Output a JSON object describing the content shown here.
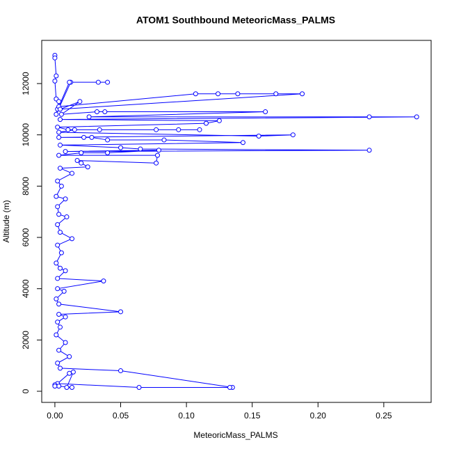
{
  "chart_data": {
    "type": "line",
    "title": "ATOM1 Southbound MeteoricMass_PALMS",
    "x_label": "MeteoricMass_PALMS",
    "y_label": "Altitude (m)",
    "x": [
      0,
      0,
      0.001,
      0,
      0.001,
      0.003,
      0.002,
      0.001,
      0.012,
      0.033,
      0.04,
      0.011,
      0.003,
      0.107,
      0.124,
      0.139,
      0.168,
      0.188,
      0.004,
      0.019,
      0.005,
      0.032,
      0.038,
      0.16,
      0.026,
      0.239,
      0.275,
      0.004,
      0.125,
      0.115,
      0.002,
      0.01,
      0.034,
      0.077,
      0.094,
      0.11,
      0.015,
      0.003,
      0.155,
      0.181,
      0.003,
      0.022,
      0.028,
      0.04,
      0.083,
      0.143,
      0.004,
      0.05,
      0.065,
      0.239,
      0.008,
      0.079,
      0.04,
      0.02,
      0.003,
      0.078,
      0.077,
      0.017,
      0.02,
      0.025,
      0.004,
      0.013,
      0.002,
      0.005,
      0.001,
      0.008,
      0.002,
      0.003,
      0.009,
      0.002,
      0.004,
      0.013,
      0.002,
      0.005,
      0.001,
      0.004,
      0.008,
      0.002,
      0.037,
      0.002,
      0.007,
      0.001,
      0.003,
      0.05,
      0.003,
      0.008,
      0.002,
      0.004,
      0.001,
      0.008,
      0.003,
      0.011,
      0.002,
      0.004,
      0.05,
      0.135,
      0.133,
      0.064,
      0.002,
      0.011,
      0.014,
      0.009,
      0.013,
      0.003,
      0,
      0
    ],
    "series": [
      {
        "color": "#0000ff",
        "values": [
          13100,
          13000,
          12300,
          12100,
          11400,
          11300,
          11000,
          10800,
          12050,
          12050,
          12050,
          12050,
          11100,
          11600,
          11600,
          11600,
          11600,
          11600,
          11000,
          11300,
          10800,
          10900,
          10900,
          10900,
          10700,
          10700,
          10700,
          10600,
          10550,
          10450,
          10300,
          10200,
          10200,
          10200,
          10200,
          10200,
          10200,
          10100,
          9950,
          10000,
          9900,
          9900,
          9900,
          9800,
          9800,
          9700,
          9600,
          9500,
          9450,
          9400,
          9350,
          9400,
          9300,
          9300,
          9200,
          9200,
          8900,
          9000,
          8900,
          8750,
          8700,
          8500,
          8200,
          8000,
          7600,
          7500,
          7200,
          6900,
          6800,
          6500,
          6200,
          5950,
          5700,
          5400,
          5000,
          4800,
          4700,
          4400,
          4300,
          4000,
          3900,
          3600,
          3400,
          3100,
          3000,
          2900,
          2700,
          2500,
          2200,
          1900,
          1600,
          1350,
          1100,
          900,
          800,
          150,
          150,
          150,
          300,
          700,
          750,
          150,
          150,
          200,
          250,
          200
        ]
      }
    ],
    "xlim": [
      -0.01,
      0.286
    ],
    "ylim": [
      -434,
      13684
    ],
    "xticks": [
      {
        "value": 0,
        "label": "0.00"
      },
      {
        "value": 0.05,
        "label": "0.05"
      },
      {
        "value": 0.1,
        "label": "0.10"
      },
      {
        "value": 0.15,
        "label": "0.15"
      },
      {
        "value": 0.2,
        "label": "0.20"
      },
      {
        "value": 0.25,
        "label": "0.25"
      }
    ],
    "yticks": [
      0,
      2000,
      4000,
      6000,
      8000,
      10000,
      12000
    ],
    "grid": false
  }
}
